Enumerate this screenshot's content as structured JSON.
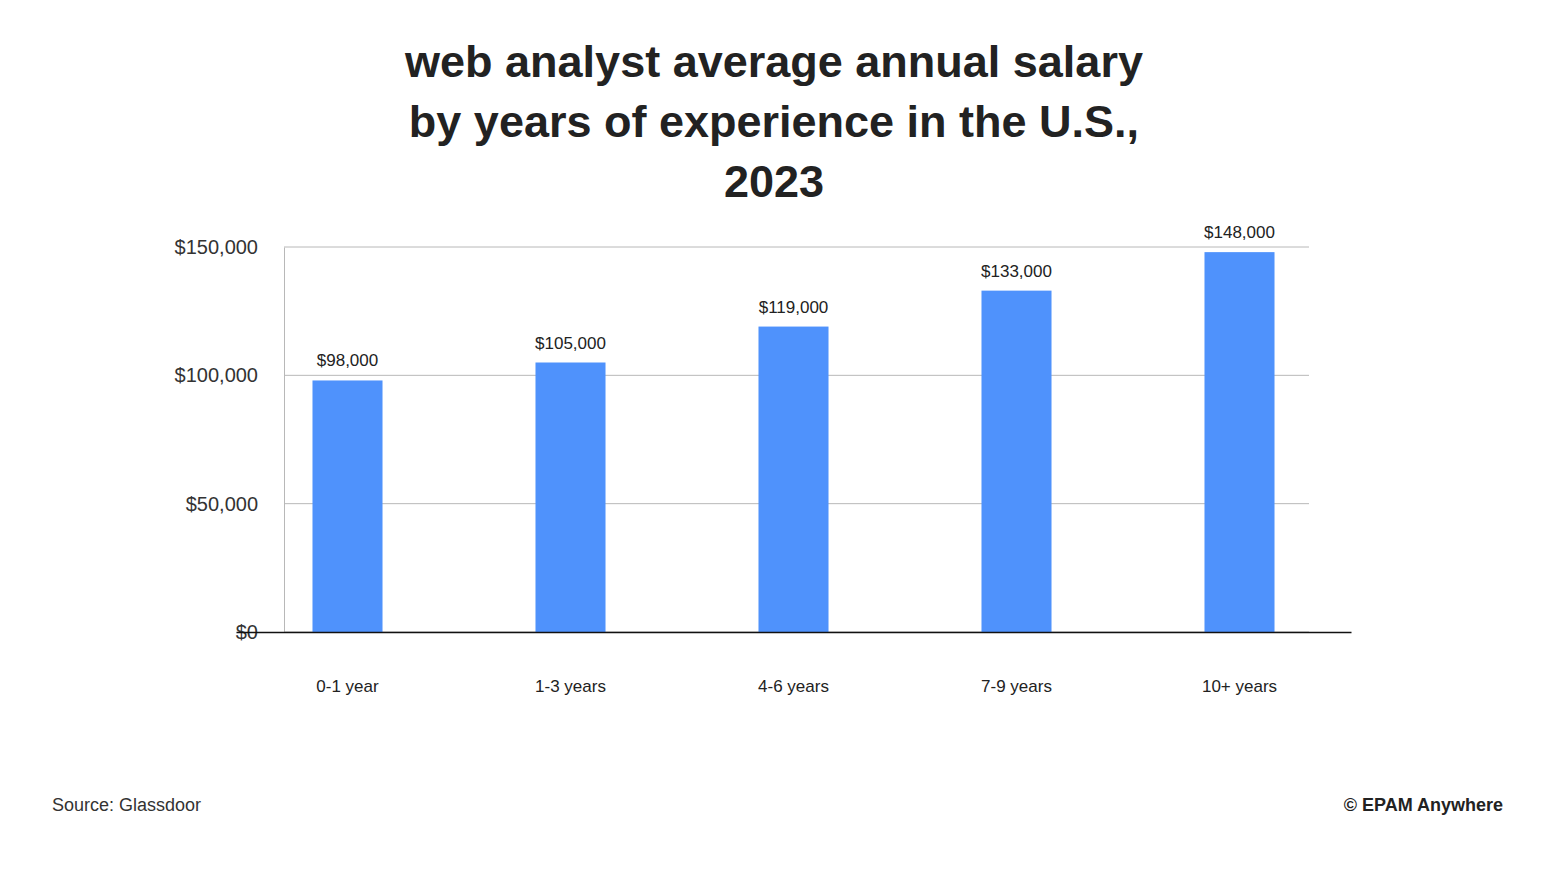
{
  "chart_data": {
    "type": "bar",
    "title": "web analyst average annual salary\nby years of experience in the U.S.,\n2023",
    "categories": [
      "0-1 year",
      "1-3 years",
      "4-6 years",
      "7-9 years",
      "10+ years"
    ],
    "values": [
      98000,
      105000,
      119000,
      133000,
      148000
    ],
    "value_labels": [
      "$98,000",
      "$105,000",
      "$119,000",
      "$133,000",
      "$148,000"
    ],
    "color": "#4f92fc",
    "ylim": [
      0,
      150000
    ],
    "yticks": [
      {
        "value": 0,
        "label": "$0"
      },
      {
        "value": 50000,
        "label": "$50,000"
      },
      {
        "value": 100000,
        "label": "$100,000"
      },
      {
        "value": 150000,
        "label": "$150,000"
      }
    ],
    "grid": true,
    "data_labels": true,
    "annotations": [
      "Source: Glassdoor",
      "© EPAM Anywhere"
    ]
  }
}
